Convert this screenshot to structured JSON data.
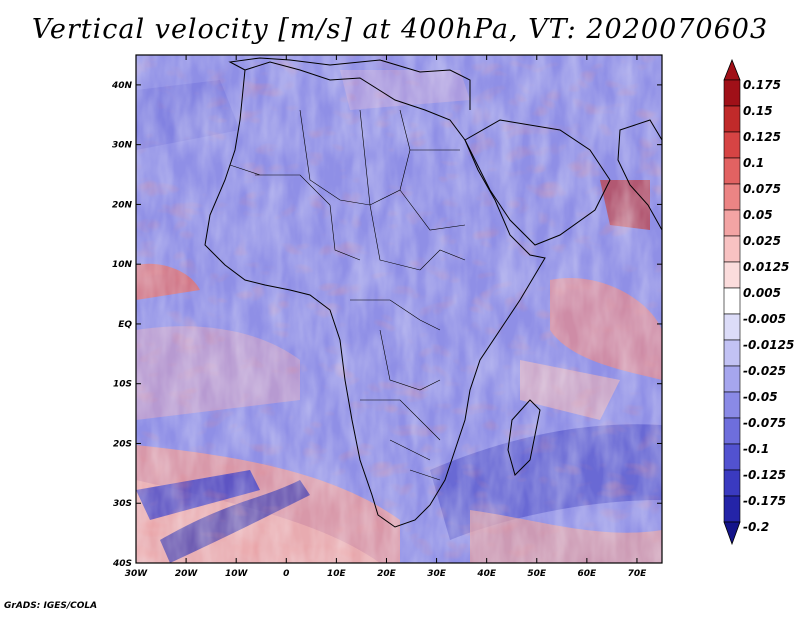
{
  "title": "Vertical velocity [m/s] at 400hPa, VT: 2020070603",
  "credit": "GrADS: IGES/COLA",
  "map": {
    "lon_range": [
      -30,
      75
    ],
    "lat_range": [
      -40,
      45
    ],
    "lon_ticks": [
      "30W",
      "20W",
      "10W",
      "0",
      "10E",
      "20E",
      "30E",
      "40E",
      "50E",
      "60E",
      "70E"
    ],
    "lat_ticks": [
      "40N",
      "30N",
      "20N",
      "10N",
      "EQ",
      "10S",
      "20S",
      "30S",
      "40S"
    ]
  },
  "colorbar": {
    "labels": [
      "0.175",
      "0.15",
      "0.125",
      "0.1",
      "0.075",
      "0.05",
      "0.025",
      "0.0125",
      "0.005",
      "-0.005",
      "-0.0125",
      "-0.025",
      "-0.05",
      "-0.075",
      "-0.1",
      "-0.125",
      "-0.175",
      "-0.2"
    ],
    "colors": [
      "#a01018",
      "#c02a2a",
      "#d64444",
      "#e26262",
      "#ec8484",
      "#f3a4a4",
      "#f8c2c2",
      "#fbdcdc",
      "#ffffff",
      "#dcdcf8",
      "#c2c2f4",
      "#a6a6ee",
      "#8a8ae6",
      "#6e6edc",
      "#5252d0",
      "#3a3ac0",
      "#2424a8",
      "#14148a"
    ]
  }
}
